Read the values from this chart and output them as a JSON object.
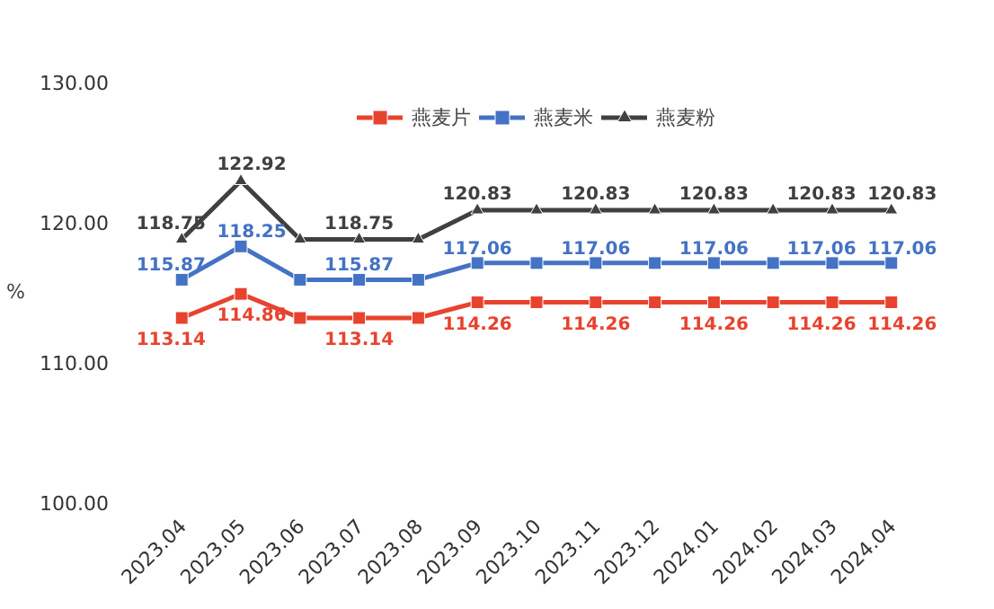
{
  "chart_data": {
    "type": "line",
    "ylabel": "%",
    "categories": [
      "2023.04",
      "2023.05",
      "2023.06",
      "2023.07",
      "2023.08",
      "2023.09",
      "2023.10",
      "2023.11",
      "2023.12",
      "2024.01",
      "2024.02",
      "2024.03",
      "2024.04"
    ],
    "ylim": [
      100,
      130
    ],
    "yticks": [
      {
        "value": 100,
        "label": "100.00"
      },
      {
        "value": 110,
        "label": "110.00"
      },
      {
        "value": 120,
        "label": "120.00"
      },
      {
        "value": 130,
        "label": "130.00"
      }
    ],
    "legend": "top",
    "series": [
      {
        "name": "燕麦片",
        "color": "#e8432f",
        "marker": "square",
        "values": [
          113.14,
          114.86,
          113.14,
          113.14,
          113.14,
          114.26,
          114.26,
          114.26,
          114.26,
          114.26,
          114.26,
          114.26,
          114.26
        ],
        "value_labels": [
          "113.14",
          "114.86",
          null,
          "113.14",
          null,
          "114.26",
          null,
          "114.26",
          null,
          "114.26",
          null,
          "114.26",
          "114.26"
        ]
      },
      {
        "name": "燕麦米",
        "color": "#4472c4",
        "marker": "square",
        "values": [
          115.87,
          118.25,
          115.87,
          115.87,
          115.87,
          117.06,
          117.06,
          117.06,
          117.06,
          117.06,
          117.06,
          117.06,
          117.06
        ],
        "value_labels": [
          "115.87",
          "118.25",
          null,
          "115.87",
          null,
          "117.06",
          null,
          "117.06",
          null,
          "117.06",
          null,
          "117.06",
          "117.06"
        ]
      },
      {
        "name": "燕麦粉",
        "color": "#404040",
        "marker": "triangle",
        "values": [
          118.75,
          122.92,
          118.75,
          118.75,
          118.75,
          120.83,
          120.83,
          120.83,
          120.83,
          120.83,
          120.83,
          120.83,
          120.83
        ],
        "value_labels": [
          "118.75",
          "122.92",
          null,
          "118.75",
          null,
          "120.83",
          null,
          "120.83",
          null,
          "120.83",
          null,
          "120.83",
          "120.83"
        ]
      }
    ]
  }
}
